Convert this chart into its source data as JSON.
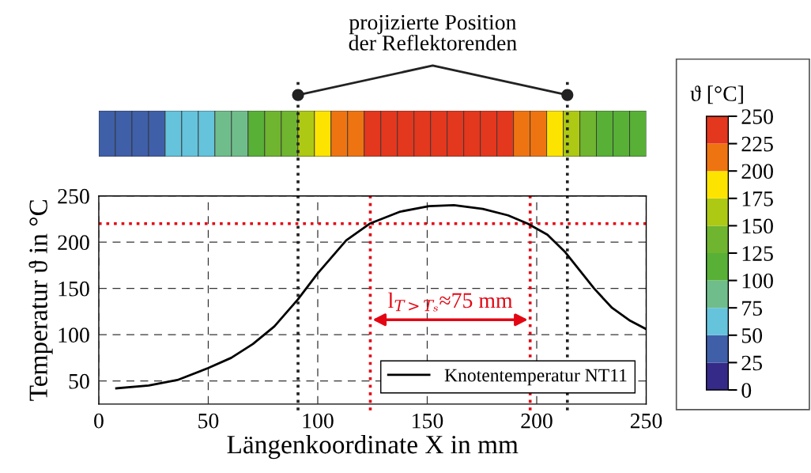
{
  "chart_data": [
    {
      "type": "heatmap",
      "categories": [
        null,
        null,
        null,
        null,
        null,
        null,
        null,
        null,
        null,
        null,
        null,
        null,
        null,
        null,
        null,
        null,
        null,
        null,
        null,
        null,
        null,
        null,
        null,
        null,
        null,
        null,
        null,
        null,
        null,
        null,
        null,
        null,
        null
      ],
      "y_categories": [
        null
      ],
      "cells": [
        [
          37.5,
          37.5,
          37.5,
          37.5,
          62.5,
          62.5,
          62.5,
          87.5,
          87.5,
          112.5,
          137.5,
          137.5,
          162.5,
          187.5,
          212.5,
          212.5,
          237.5,
          237.5,
          237.5,
          237.5,
          237.5,
          237.5,
          237.5,
          237.5,
          237.5,
          212.5,
          212.5,
          187.5,
          162.5,
          137.5,
          112.5,
          112.5,
          112.5
        ]
      ],
      "colors": [
        "#352a87",
        "#3f5fa8",
        "#65c3dc",
        "#70bd8c",
        "#58b036",
        "#6fb52f",
        "#adc914",
        "#fde400",
        "#ee7412",
        "#e3371e"
      ],
      "clim": [
        0,
        250
      ],
      "cticks": [
        0,
        25,
        50,
        75,
        100,
        125,
        150,
        175,
        200,
        225,
        250
      ],
      "clabel": "ϑ [°C]",
      "tick_labels": false
    },
    {
      "type": "line",
      "xlabel": "Längenkoordinate X in mm",
      "ylabel": "Temperatur ϑ in °C",
      "series": [
        {
          "name": "Knotentemperatur NT11",
          "color": "#000000",
          "x": [
            8,
            22.8,
            35.9,
            50,
            60.5,
            70.4,
            80.2,
            90.9,
            99.9,
            113,
            123.7,
            137.7,
            150.8,
            162.2,
            175.4,
            186.9,
            195.9,
            204.9,
            213.1,
            226.2,
            234.4,
            242.7,
            250
          ],
          "values": [
            42,
            45,
            51,
            64,
            75,
            90,
            109,
            138,
            166,
            202,
            220,
            233,
            239,
            240,
            236,
            229,
            220,
            208,
            189,
            150,
            129,
            115,
            106
          ]
        }
      ],
      "xlim": [
        0,
        250
      ],
      "xticks": [
        0,
        50,
        100,
        150,
        200,
        250
      ],
      "ylim": [
        25,
        250
      ],
      "yticks": [
        50,
        100,
        150,
        200,
        250
      ],
      "grid": true,
      "legend": "bottom right",
      "marker": "none",
      "line_style": "solid",
      "ref_lines": [
        {
          "axis": "y",
          "value": 220,
          "color": "#e30613",
          "line_style": "dotted"
        },
        {
          "axis": "x",
          "value": 124,
          "color": "#e30613",
          "line_style": "dotted"
        },
        {
          "axis": "x",
          "value": 197,
          "color": "#e30613",
          "line_style": "dotted"
        },
        {
          "axis": "x",
          "value": 91,
          "color": "#222222",
          "line_style": "dotted"
        },
        {
          "axis": "x",
          "value": 214,
          "color": "#222222",
          "line_style": "dotted"
        }
      ],
      "annotations": [
        "l$_{T>Tₛ}$≈75 mm",
        "projizierte Position\nder Reflektorenden"
      ]
    }
  ]
}
